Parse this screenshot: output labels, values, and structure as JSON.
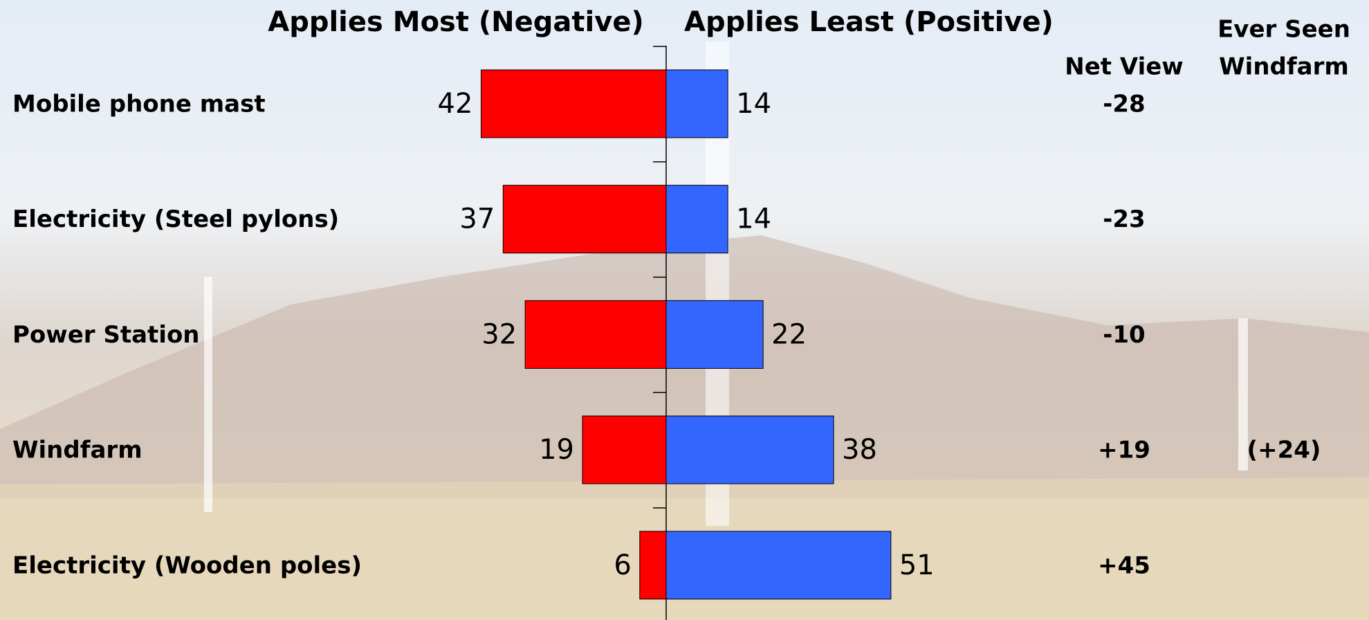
{
  "chart_data": {
    "type": "diverging_bar",
    "categories": [
      "Mobile phone mast",
      "Electricity (Steel pylons)",
      "Power Station",
      "Windfarm",
      "Electricity (Wooden poles)"
    ],
    "series": [
      {
        "name": "Applies Most (Negative)",
        "color": "#ff0000",
        "values": [
          42,
          37,
          32,
          19,
          6
        ]
      },
      {
        "name": "Applies Least (Positive)",
        "color": "#3366ff",
        "values": [
          14,
          14,
          22,
          38,
          51
        ]
      }
    ],
    "columns": [
      {
        "header": [
          "Net View"
        ],
        "values": [
          -28,
          -23,
          -10,
          19,
          45
        ],
        "value_labels": [
          "-28",
          "-23",
          "-10",
          "+19",
          "+45"
        ]
      },
      {
        "header": [
          "Ever Seen",
          "Windfarm"
        ],
        "values": [
          null,
          null,
          null,
          24,
          null
        ],
        "value_labels": [
          null,
          null,
          null,
          "(+24)",
          null
        ]
      }
    ]
  }
}
